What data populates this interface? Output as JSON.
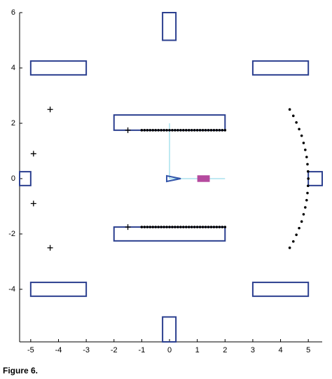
{
  "chart_data": {
    "type": "scatter",
    "caption": "Figure 6.",
    "xlim": [
      -5.4,
      5.5
    ],
    "ylim": [
      -5.9,
      6
    ],
    "xticks": [
      -5,
      -4,
      -3,
      -2,
      -1,
      0,
      1,
      2,
      3,
      4,
      5
    ],
    "yticks": [
      -4,
      -2,
      0,
      2,
      4,
      6
    ],
    "series": [
      {
        "color": "#000000",
        "marker": "plus",
        "x": [
          -4.3,
          -4.9,
          -4.9,
          -4.3,
          -1.5,
          -1.5
        ],
        "y": [
          2.5,
          0.9,
          -0.9,
          -2.5,
          1.75,
          -1.75
        ]
      },
      {
        "color": "#000000",
        "marker": "dot",
        "x": [
          -1,
          -0.9,
          -0.8,
          -0.7,
          -0.6,
          -0.5,
          -0.4,
          -0.3,
          -0.2,
          -0.1,
          0,
          0.1,
          0.2,
          0.3,
          0.4,
          0.5,
          0.6,
          0.7,
          0.8,
          0.9,
          1,
          1.1,
          1.2,
          1.3,
          1.4,
          1.5,
          1.6,
          1.7,
          1.8,
          1.9,
          2,
          -1,
          -0.9,
          -0.8,
          -0.7,
          -0.6,
          -0.5,
          -0.4,
          -0.3,
          -0.2,
          -0.1,
          0,
          0.1,
          0.2,
          0.3,
          0.4,
          0.5,
          0.6,
          0.7,
          0.8,
          0.9,
          1,
          1.1,
          1.2,
          1.3,
          1.4,
          1.5,
          1.6,
          1.7,
          1.8,
          1.9,
          2,
          4.33,
          4.46,
          4.57,
          4.67,
          4.76,
          4.83,
          4.89,
          4.94,
          4.97,
          4.99,
          5,
          4.99,
          4.97,
          4.94,
          4.89,
          4.83,
          4.76,
          4.67,
          4.57,
          4.46,
          4.33
        ],
        "y": [
          1.75,
          1.75,
          1.75,
          1.75,
          1.75,
          1.75,
          1.75,
          1.75,
          1.75,
          1.75,
          1.75,
          1.75,
          1.75,
          1.75,
          1.75,
          1.75,
          1.75,
          1.75,
          1.75,
          1.75,
          1.75,
          1.75,
          1.75,
          1.75,
          1.75,
          1.75,
          1.75,
          1.75,
          1.75,
          1.75,
          1.75,
          -1.75,
          -1.75,
          -1.75,
          -1.75,
          -1.75,
          -1.75,
          -1.75,
          -1.75,
          -1.75,
          -1.75,
          -1.75,
          -1.75,
          -1.75,
          -1.75,
          -1.75,
          -1.75,
          -1.75,
          -1.75,
          -1.75,
          -1.75,
          -1.75,
          -1.75,
          -1.75,
          -1.75,
          -1.75,
          -1.75,
          -1.75,
          -1.75,
          -1.75,
          -1.75,
          -1.75,
          2.5,
          2.27,
          2.03,
          1.79,
          1.55,
          1.29,
          1.04,
          0.78,
          0.52,
          0.26,
          0,
          -0.26,
          -0.52,
          -0.78,
          -1.04,
          -1.29,
          -1.55,
          -1.79,
          -2.03,
          -2.27,
          -2.5
        ]
      }
    ],
    "obstacle_color": "#2b3f8f",
    "obstacles": [
      {
        "x": [
          -0.25,
          0.23
        ],
        "y": [
          5.0,
          6
        ]
      },
      {
        "x": [
          -0.25,
          0.23
        ],
        "y": [
          -5.9,
          -5.0
        ]
      },
      {
        "x": [
          -5,
          -3
        ],
        "y": [
          3.75,
          4.25
        ]
      },
      {
        "x": [
          3,
          5
        ],
        "y": [
          3.75,
          4.25
        ]
      },
      {
        "x": [
          -5,
          -3
        ],
        "y": [
          -4.25,
          -3.75
        ]
      },
      {
        "x": [
          3,
          5
        ],
        "y": [
          -4.25,
          -3.75
        ]
      },
      {
        "x": [
          -2,
          2
        ],
        "y": [
          1.75,
          2.3
        ]
      },
      {
        "x": [
          -2,
          2
        ],
        "y": [
          -2.25,
          -1.75
        ]
      },
      {
        "x": [
          -5.4,
          -5
        ],
        "y": [
          -0.25,
          0.25
        ]
      },
      {
        "x": [
          5,
          5.5
        ],
        "y": [
          -0.25,
          0.25
        ]
      }
    ],
    "frame_lines": {
      "color": "#7fd3e6",
      "x": [
        0,
        0,
        2
      ],
      "y": [
        2,
        0,
        0
      ]
    },
    "robot": {
      "color": "#3355aa",
      "x": 0,
      "y": 0
    },
    "target": {
      "color": "#b54a9e",
      "x": [
        1,
        1.45
      ],
      "y": [
        -0.12,
        0.12
      ]
    }
  }
}
